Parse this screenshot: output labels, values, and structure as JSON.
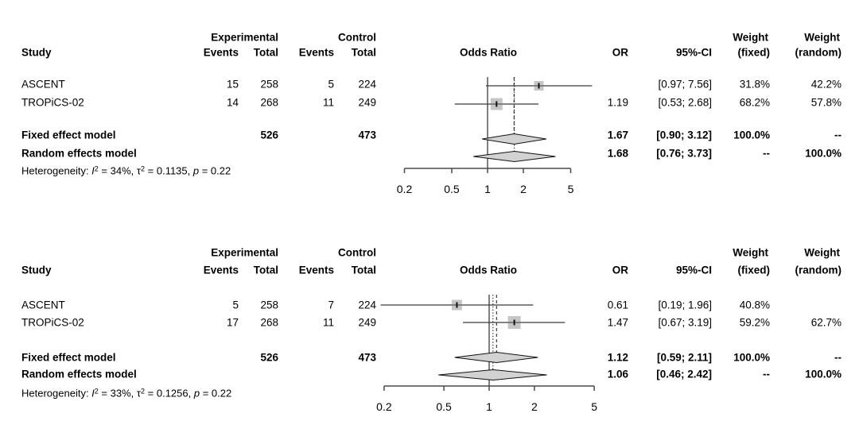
{
  "colors": {
    "background": "#ffffff",
    "text": "#000000",
    "ci_line": "#3a3a3a",
    "ref_line": "#2b2b2b",
    "pooled_line": "#2b2b2b",
    "axis": "#4a4a4a",
    "square_fill": "#c6c6c6",
    "square_marker": "#111111",
    "diamond_fill": "#d2d2d2",
    "diamond_stroke": "#111111"
  },
  "columns": {
    "study": "Study",
    "experimental": "Experimental",
    "control": "Control",
    "events": "Events",
    "total": "Total",
    "odds_ratio": "Odds Ratio",
    "or": "OR",
    "ci": "95%-CI",
    "weight": "Weight",
    "weight_fixed": "(fixed)",
    "weight_random": "(random)"
  },
  "chart_data": [
    {
      "type": "forest",
      "x_scale": "log",
      "x_ticks": [
        "0.2",
        "0.5",
        "1",
        "2",
        "5"
      ],
      "ref_line": 1,
      "studies": [
        {
          "study": "ASCENT",
          "exp_events": "15",
          "exp_total": "258",
          "ctrl_events": "5",
          "ctrl_total": "224",
          "or": 2.7,
          "ci_lower": 0.97,
          "ci_upper": 7.56,
          "or_label": "",
          "ci_label": "[0.97; 7.56]",
          "weight_fixed": "31.8%",
          "weight_random": "42.2%"
        },
        {
          "study": "TROPiCS-02",
          "exp_events": "14",
          "exp_total": "268",
          "ctrl_events": "11",
          "ctrl_total": "249",
          "or": 1.19,
          "ci_lower": 0.53,
          "ci_upper": 2.68,
          "or_label": "1.19",
          "ci_label": "[0.53; 2.68]",
          "weight_fixed": "68.2%",
          "weight_random": "57.8%"
        }
      ],
      "fixed": {
        "label": "Fixed effect model",
        "exp_total": "526",
        "ctrl_total": "473",
        "or": 1.67,
        "ci_lower": 0.9,
        "ci_upper": 3.12,
        "or_label": "1.67",
        "ci_label": "[0.90; 3.12]",
        "weight_fixed": "100.0%",
        "weight_random": "--"
      },
      "random": {
        "label": "Random effects model",
        "or": 1.68,
        "ci_lower": 0.76,
        "ci_upper": 3.73,
        "or_label": "1.68",
        "ci_label": "[0.76; 3.73]",
        "weight_fixed": "--",
        "weight_random": "100.0%"
      },
      "heterogeneity": [
        {
          "t": "Heterogeneity: "
        },
        {
          "t": "I",
          "it": 1
        },
        {
          "t": "2",
          "sup": 1
        },
        {
          "t": " = 34%, "
        },
        {
          "t": "τ"
        },
        {
          "t": "2",
          "sup": 1
        },
        {
          "t": " = 0.1135, "
        },
        {
          "t": "p",
          "it": 1
        },
        {
          "t": " = 0.22"
        }
      ]
    },
    {
      "type": "forest",
      "x_scale": "log",
      "x_ticks": [
        "0.2",
        "0.5",
        "1",
        "2",
        "5"
      ],
      "ref_line": 1,
      "studies": [
        {
          "study": "ASCENT",
          "exp_events": "5",
          "exp_total": "258",
          "ctrl_events": "7",
          "ctrl_total": "224",
          "or": 0.61,
          "ci_lower": 0.19,
          "ci_upper": 1.96,
          "or_label": "0.61",
          "ci_label": "[0.19; 1.96]",
          "weight_fixed": "40.8%",
          "weight_random": ""
        },
        {
          "study": "TROPiCS-02",
          "exp_events": "17",
          "exp_total": "268",
          "ctrl_events": "11",
          "ctrl_total": "249",
          "or": 1.47,
          "ci_lower": 0.67,
          "ci_upper": 3.19,
          "or_label": "1.47",
          "ci_label": "[0.67; 3.19]",
          "weight_fixed": "59.2%",
          "weight_random": "62.7%"
        }
      ],
      "fixed": {
        "label": "Fixed effect model",
        "exp_total": "526",
        "ctrl_total": "473",
        "or": 1.12,
        "ci_lower": 0.59,
        "ci_upper": 2.11,
        "or_label": "1.12",
        "ci_label": "[0.59; 2.11]",
        "weight_fixed": "100.0%",
        "weight_random": "--"
      },
      "random": {
        "label": "Random effects model",
        "or": 1.06,
        "ci_lower": 0.46,
        "ci_upper": 2.42,
        "or_label": "1.06",
        "ci_label": "[0.46; 2.42]",
        "weight_fixed": "--",
        "weight_random": "100.0%"
      },
      "heterogeneity": [
        {
          "t": "Heterogeneity: "
        },
        {
          "t": "I",
          "it": 1
        },
        {
          "t": "2",
          "sup": 1
        },
        {
          "t": " = 33%, "
        },
        {
          "t": "τ"
        },
        {
          "t": "2",
          "sup": 1
        },
        {
          "t": " = 0.1256, "
        },
        {
          "t": "p",
          "it": 1
        },
        {
          "t": " = 0.22"
        }
      ]
    }
  ]
}
